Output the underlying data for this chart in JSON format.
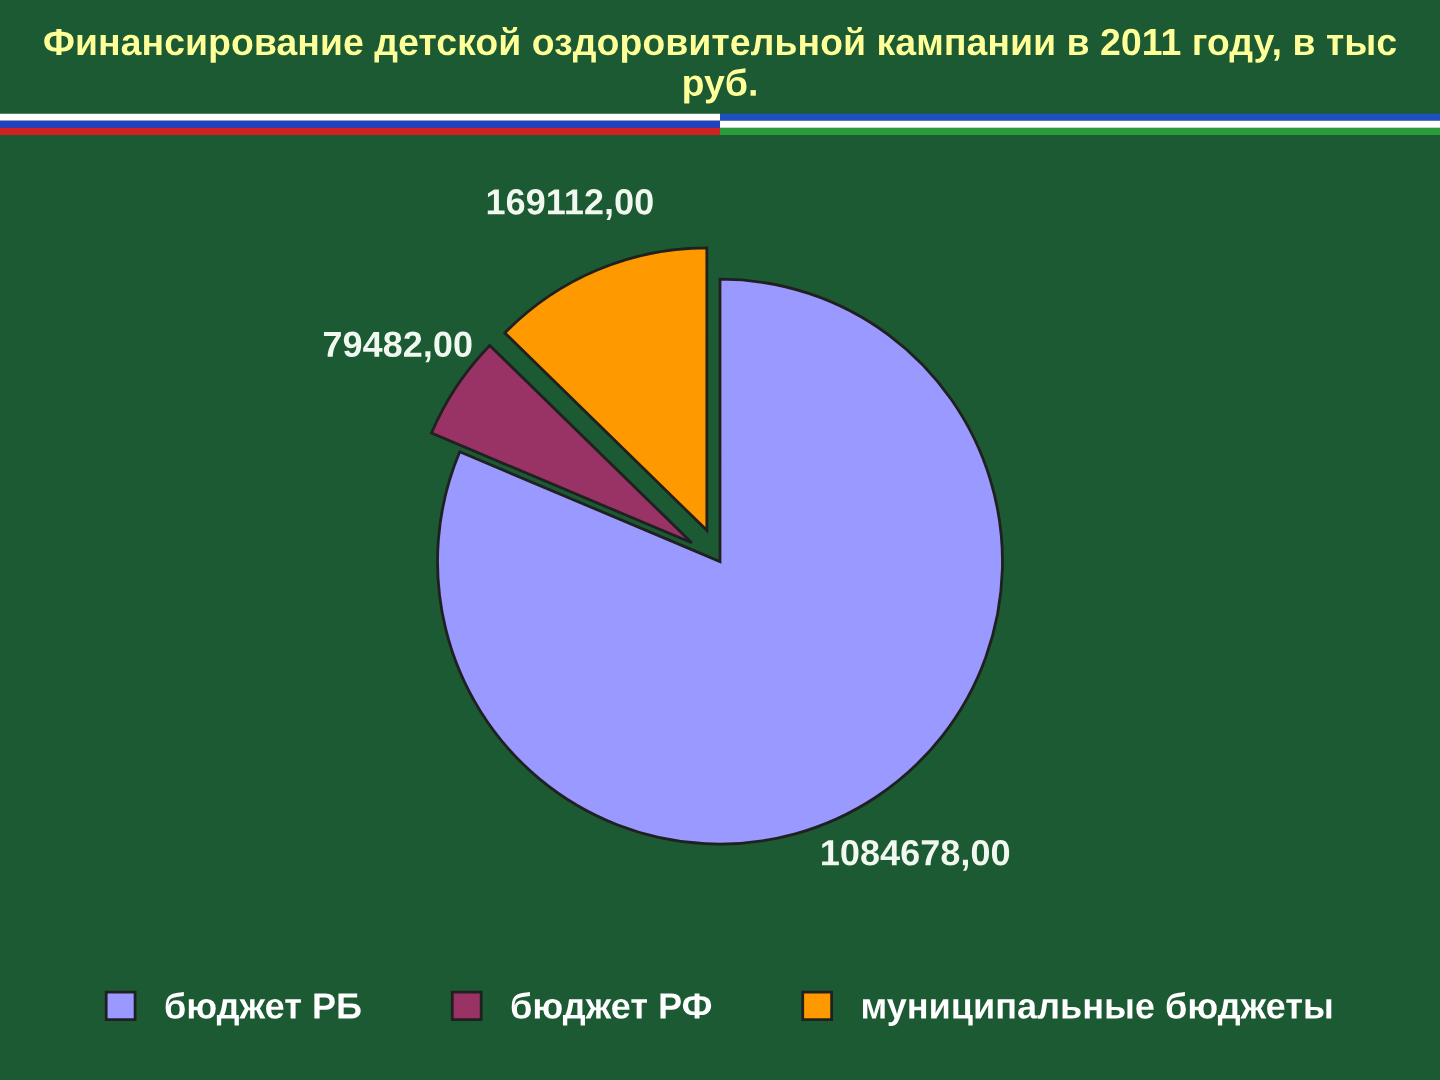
{
  "chart_data": {
    "type": "pie",
    "title": "Финансирование детской оздоровительной кампании в 2011 году, в тыс руб.",
    "categories": [
      "бюджет РБ",
      "бюджет РФ",
      "муниципальные бюджеты"
    ],
    "values": [
      1084678,
      79482,
      169112
    ],
    "colors": [
      "#9999ff",
      "#993366",
      "#ff9900"
    ],
    "value_labels": [
      "1084678,00",
      "79482,00",
      "169112,00"
    ],
    "legend": "bottom"
  }
}
